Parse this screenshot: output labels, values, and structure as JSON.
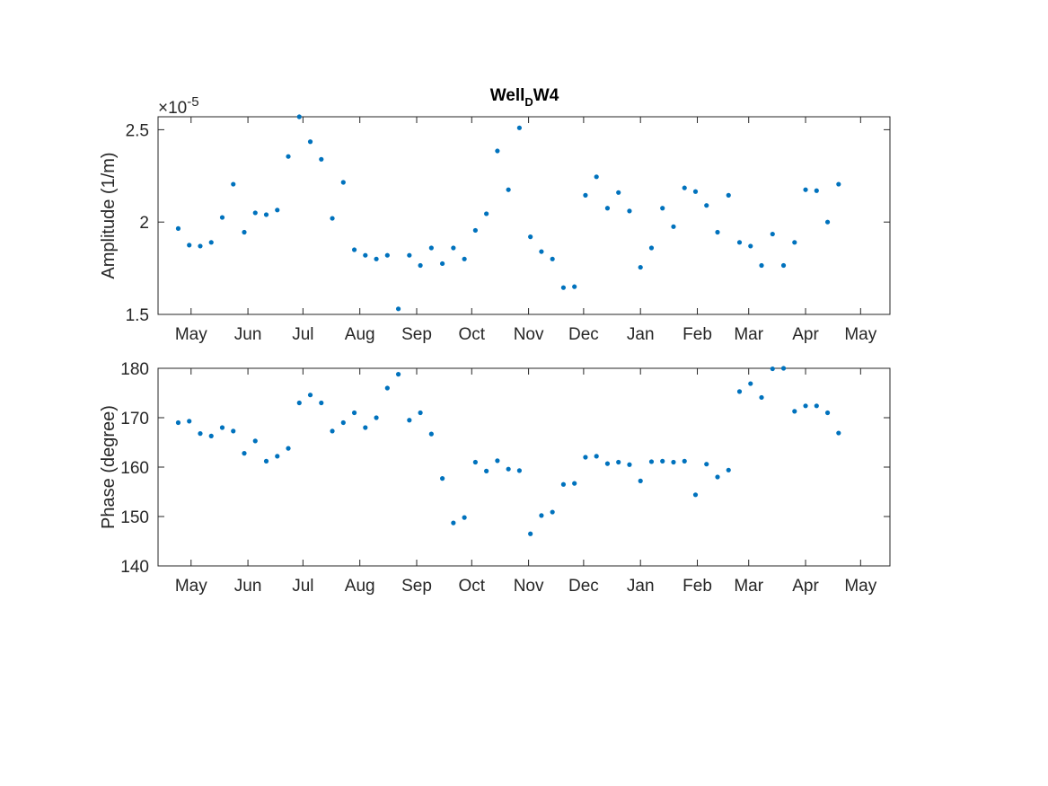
{
  "figure": {
    "title_main": "Well",
    "title_sub": "D",
    "title_rest": "W4"
  },
  "chart_data": [
    {
      "type": "scatter",
      "ylabel": "Amplitude (1/m)",
      "exponent_label": "×10",
      "exponent_power": "-5",
      "ylim": [
        1.5,
        2.57
      ],
      "yticks": [
        1.5,
        2,
        2.5
      ],
      "ytick_labels": [
        "1.5",
        "2",
        "2.5"
      ],
      "xlim": [
        "2020-04-13",
        "2021-05-17"
      ],
      "xticks": [
        "2020-05-01",
        "2020-06-01",
        "2020-07-01",
        "2020-08-01",
        "2020-09-01",
        "2020-10-01",
        "2020-11-01",
        "2020-12-01",
        "2021-01-01",
        "2021-02-01",
        "2021-03-01",
        "2021-04-01",
        "2021-05-01"
      ],
      "xtick_labels": [
        "May",
        "Jun",
        "Jul",
        "Aug",
        "Sep",
        "Oct",
        "Nov",
        "Dec",
        "Jan",
        "Feb",
        "Mar",
        "Apr",
        "May"
      ],
      "marker_color": "#0072BD",
      "points": [
        [
          "2020-04-24",
          1.965
        ],
        [
          "2020-04-30",
          1.875
        ],
        [
          "2020-05-06",
          1.87
        ],
        [
          "2020-05-12",
          1.89
        ],
        [
          "2020-05-18",
          2.025
        ],
        [
          "2020-05-24",
          2.205
        ],
        [
          "2020-05-30",
          1.945
        ],
        [
          "2020-06-05",
          2.05
        ],
        [
          "2020-06-11",
          2.04
        ],
        [
          "2020-06-17",
          2.065
        ],
        [
          "2020-06-23",
          2.355
        ],
        [
          "2020-06-29",
          2.57
        ],
        [
          "2020-07-05",
          2.435
        ],
        [
          "2020-07-11",
          2.34
        ],
        [
          "2020-07-17",
          2.02
        ],
        [
          "2020-07-23",
          2.215
        ],
        [
          "2020-07-29",
          1.85
        ],
        [
          "2020-08-04",
          1.82
        ],
        [
          "2020-08-10",
          1.8
        ],
        [
          "2020-08-16",
          1.82
        ],
        [
          "2020-08-22",
          1.53
        ],
        [
          "2020-08-28",
          1.82
        ],
        [
          "2020-09-03",
          1.765
        ],
        [
          "2020-09-09",
          1.86
        ],
        [
          "2020-09-15",
          1.775
        ],
        [
          "2020-09-21",
          1.86
        ],
        [
          "2020-09-27",
          1.8
        ],
        [
          "2020-10-03",
          1.955
        ],
        [
          "2020-10-09",
          2.045
        ],
        [
          "2020-10-15",
          2.385
        ],
        [
          "2020-10-21",
          2.175
        ],
        [
          "2020-10-27",
          2.51
        ],
        [
          "2020-11-02",
          1.92
        ],
        [
          "2020-11-08",
          1.84
        ],
        [
          "2020-11-14",
          1.8
        ],
        [
          "2020-11-20",
          1.645
        ],
        [
          "2020-11-26",
          1.65
        ],
        [
          "2020-12-02",
          2.145
        ],
        [
          "2020-12-08",
          2.245
        ],
        [
          "2020-12-14",
          2.075
        ],
        [
          "2020-12-20",
          2.16
        ],
        [
          "2020-12-26",
          2.06
        ],
        [
          "2021-01-01",
          1.755
        ],
        [
          "2021-01-07",
          1.86
        ],
        [
          "2021-01-13",
          2.075
        ],
        [
          "2021-01-19",
          1.975
        ],
        [
          "2021-01-25",
          2.185
        ],
        [
          "2021-01-31",
          2.165
        ],
        [
          "2021-02-06",
          2.09
        ],
        [
          "2021-02-12",
          1.945
        ],
        [
          "2021-02-18",
          2.145
        ],
        [
          "2021-02-24",
          1.89
        ],
        [
          "2021-03-02",
          1.87
        ],
        [
          "2021-03-08",
          1.765
        ],
        [
          "2021-03-14",
          1.935
        ],
        [
          "2021-03-20",
          1.765
        ],
        [
          "2021-03-26",
          1.89
        ],
        [
          "2021-04-01",
          2.175
        ],
        [
          "2021-04-07",
          2.17
        ],
        [
          "2021-04-13",
          2.0
        ],
        [
          "2021-04-19",
          2.205
        ]
      ]
    },
    {
      "type": "scatter",
      "ylabel": "Phase (degree)",
      "ylim": [
        140,
        180
      ],
      "yticks": [
        140,
        150,
        160,
        170,
        180
      ],
      "ytick_labels": [
        "140",
        "150",
        "160",
        "170",
        "180"
      ],
      "xlim": [
        "2020-04-13",
        "2021-05-17"
      ],
      "xticks": [
        "2020-05-01",
        "2020-06-01",
        "2020-07-01",
        "2020-08-01",
        "2020-09-01",
        "2020-10-01",
        "2020-11-01",
        "2020-12-01",
        "2021-01-01",
        "2021-02-01",
        "2021-03-01",
        "2021-04-01",
        "2021-05-01"
      ],
      "xtick_labels": [
        "May",
        "Jun",
        "Jul",
        "Aug",
        "Sep",
        "Oct",
        "Nov",
        "Dec",
        "Jan",
        "Feb",
        "Mar",
        "Apr",
        "May"
      ],
      "marker_color": "#0072BD",
      "points": [
        [
          "2020-04-24",
          169.0
        ],
        [
          "2020-04-30",
          169.3
        ],
        [
          "2020-05-06",
          166.8
        ],
        [
          "2020-05-12",
          166.3
        ],
        [
          "2020-05-18",
          168.0
        ],
        [
          "2020-05-24",
          167.3
        ],
        [
          "2020-05-30",
          162.8
        ],
        [
          "2020-06-05",
          165.3
        ],
        [
          "2020-06-11",
          161.2
        ],
        [
          "2020-06-17",
          162.2
        ],
        [
          "2020-06-23",
          163.8
        ],
        [
          "2020-06-29",
          173.0
        ],
        [
          "2020-07-05",
          174.6
        ],
        [
          "2020-07-11",
          173.0
        ],
        [
          "2020-07-17",
          167.3
        ],
        [
          "2020-07-23",
          169.0
        ],
        [
          "2020-07-29",
          171.0
        ],
        [
          "2020-08-04",
          168.0
        ],
        [
          "2020-08-10",
          170.0
        ],
        [
          "2020-08-16",
          176.0
        ],
        [
          "2020-08-22",
          178.8
        ],
        [
          "2020-08-28",
          169.5
        ],
        [
          "2020-09-03",
          171.0
        ],
        [
          "2020-09-09",
          166.7
        ],
        [
          "2020-09-15",
          157.7
        ],
        [
          "2020-09-21",
          148.7
        ],
        [
          "2020-09-27",
          149.8
        ],
        [
          "2020-10-03",
          161.0
        ],
        [
          "2020-10-09",
          159.2
        ],
        [
          "2020-10-15",
          161.3
        ],
        [
          "2020-10-21",
          159.6
        ],
        [
          "2020-10-27",
          159.3
        ],
        [
          "2020-11-02",
          146.5
        ],
        [
          "2020-11-08",
          150.2
        ],
        [
          "2020-11-14",
          150.9
        ],
        [
          "2020-11-20",
          156.5
        ],
        [
          "2020-11-26",
          156.7
        ],
        [
          "2020-12-02",
          162.0
        ],
        [
          "2020-12-08",
          162.2
        ],
        [
          "2020-12-14",
          160.7
        ],
        [
          "2020-12-20",
          161.0
        ],
        [
          "2020-12-26",
          160.5
        ],
        [
          "2021-01-01",
          157.2
        ],
        [
          "2021-01-07",
          161.1
        ],
        [
          "2021-01-13",
          161.2
        ],
        [
          "2021-01-19",
          161.0
        ],
        [
          "2021-01-25",
          161.2
        ],
        [
          "2021-01-31",
          154.4
        ],
        [
          "2021-02-06",
          160.6
        ],
        [
          "2021-02-12",
          158.0
        ],
        [
          "2021-02-18",
          159.4
        ],
        [
          "2021-02-24",
          175.3
        ],
        [
          "2021-03-02",
          176.9
        ],
        [
          "2021-03-08",
          174.1
        ],
        [
          "2021-03-14",
          179.9
        ],
        [
          "2021-03-20",
          180.0
        ],
        [
          "2021-03-26",
          171.3
        ],
        [
          "2021-04-01",
          172.4
        ],
        [
          "2021-04-07",
          172.4
        ],
        [
          "2021-04-13",
          171.0
        ],
        [
          "2021-04-19",
          166.9
        ]
      ]
    }
  ]
}
